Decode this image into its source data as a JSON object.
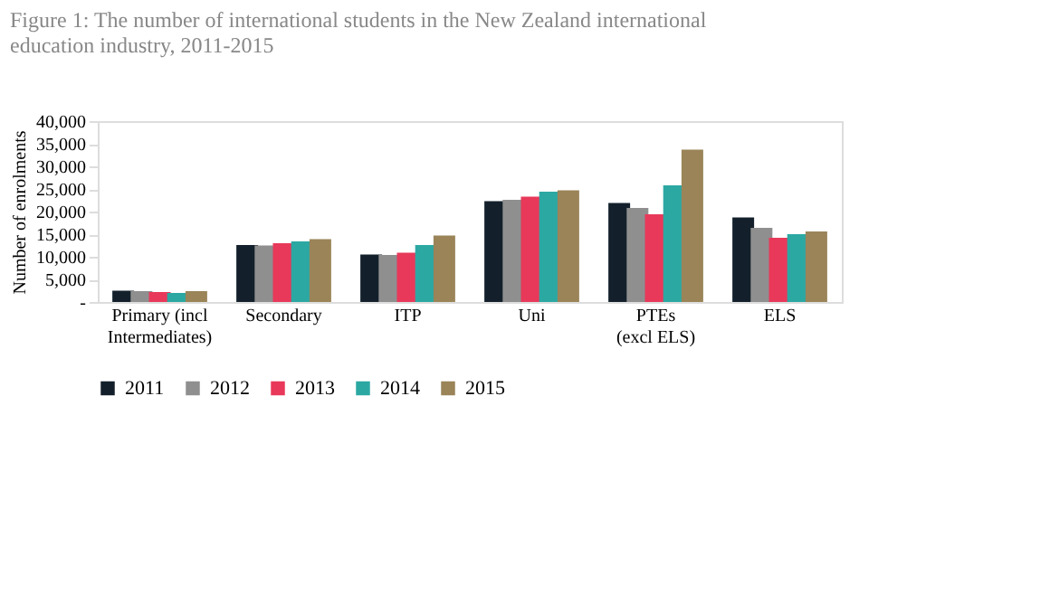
{
  "chart_data": {
    "type": "bar",
    "title": "Figure 1: The number of international students in the New Zealand international education industry, 2011-2015",
    "ylabel": "Number of enrolments",
    "categories": [
      "Primary (incl Intermediates)",
      "Secondary",
      "ITP",
      "Uni",
      "PTEs (excl ELS)",
      "ELS"
    ],
    "series": [
      {
        "name": "2011",
        "color": "#13202c",
        "values": [
          2500,
          12600,
          10500,
          22300,
          21900,
          18700
        ]
      },
      {
        "name": "2012",
        "color": "#8f8f8f",
        "values": [
          2400,
          12500,
          10400,
          22600,
          20800,
          16400
        ]
      },
      {
        "name": "2013",
        "color": "#e8395a",
        "values": [
          2200,
          13000,
          10900,
          23300,
          19400,
          14200
        ]
      },
      {
        "name": "2014",
        "color": "#2ca8a3",
        "values": [
          2000,
          13400,
          12600,
          24400,
          25800,
          15000
        ]
      },
      {
        "name": "2015",
        "color": "#9a8458",
        "values": [
          2400,
          13900,
          14700,
          24700,
          33700,
          15600
        ]
      }
    ],
    "ylim": [
      0,
      40000
    ],
    "yticks": [
      {
        "value": 0,
        "label": "-"
      },
      {
        "value": 5000,
        "label": "5,000"
      },
      {
        "value": 10000,
        "label": "10,000"
      },
      {
        "value": 15000,
        "label": "15,000"
      },
      {
        "value": 20000,
        "label": "20,000"
      },
      {
        "value": 25000,
        "label": "25,000"
      },
      {
        "value": 30000,
        "label": "30,000"
      },
      {
        "value": 35000,
        "label": "35,000"
      },
      {
        "value": 40000,
        "label": "40,000"
      }
    ],
    "grid": false,
    "legend": "bottom"
  }
}
